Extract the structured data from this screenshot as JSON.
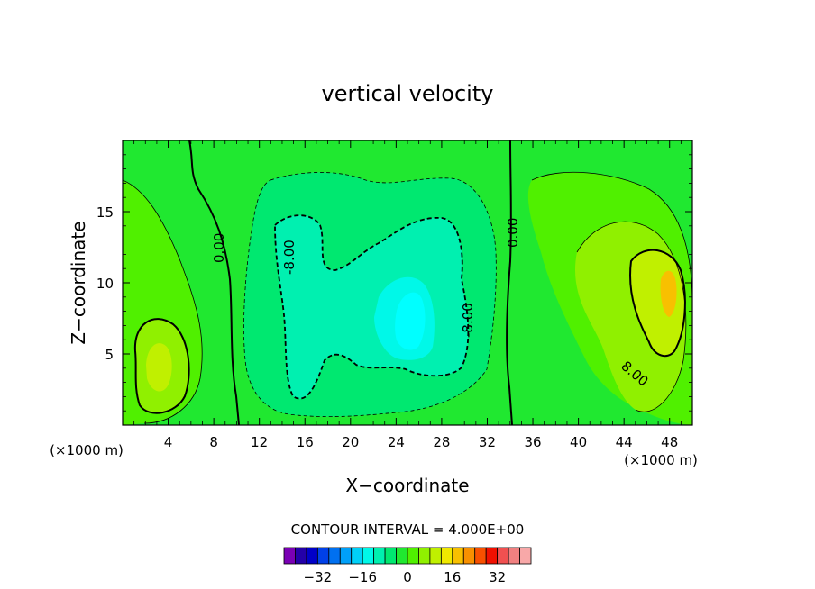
{
  "chart_data": {
    "type": "heatmap",
    "title": "vertical velocity",
    "xlabel": "X−coordinate",
    "ylabel": "Z−coordinate",
    "x_units_left": "(×1000 m)",
    "x_units_right": "(×1000 m)",
    "xlim": [
      0,
      50
    ],
    "ylim": [
      0,
      20
    ],
    "x_ticks": [
      4,
      8,
      12,
      16,
      20,
      24,
      28,
      32,
      36,
      40,
      44,
      48
    ],
    "y_ticks": [
      5,
      10,
      15
    ],
    "contour_interval_text": "CONTOUR INTERVAL = 4.000E+00",
    "contour_labels": [
      "0.00",
      "-8.00",
      "0.00",
      "-8.00",
      "8.00"
    ],
    "colorbar": {
      "colors": [
        "#7a00b4",
        "#2400a8",
        "#0000c8",
        "#0040e8",
        "#0070f0",
        "#00a0f8",
        "#00d0f8",
        "#00f8e8",
        "#00f0b0",
        "#00e870",
        "#20e830",
        "#50f000",
        "#90f000",
        "#c0f000",
        "#f0e800",
        "#f8c000",
        "#f89000",
        "#f85000",
        "#f01000",
        "#f05050",
        "#f08080",
        "#f8a8a8"
      ],
      "tick_labels": [
        "−32",
        "−16",
        "0",
        "16",
        "32"
      ],
      "tick_values": [
        -32,
        -16,
        0,
        16,
        32
      ]
    },
    "regions": [
      {
        "name": "downdraft-center",
        "x": 26,
        "z": 8,
        "value": -16
      },
      {
        "name": "updraft-right",
        "x": 48,
        "z": 10,
        "value": 12
      },
      {
        "name": "updraft-left",
        "x": 3,
        "z": 4,
        "value": 8
      }
    ]
  },
  "colors": {
    "background": "#ffffff",
    "field_zero": "#20e830",
    "field_neg4": "#00e870",
    "field_neg8": "#00f0b0",
    "field_neg12": "#00f8e8",
    "field_neg16": "#00ffff",
    "field_pos4": "#50f000",
    "field_pos8": "#90f000",
    "field_pos12": "#c0f000",
    "field_pos16": "#f8c000"
  }
}
